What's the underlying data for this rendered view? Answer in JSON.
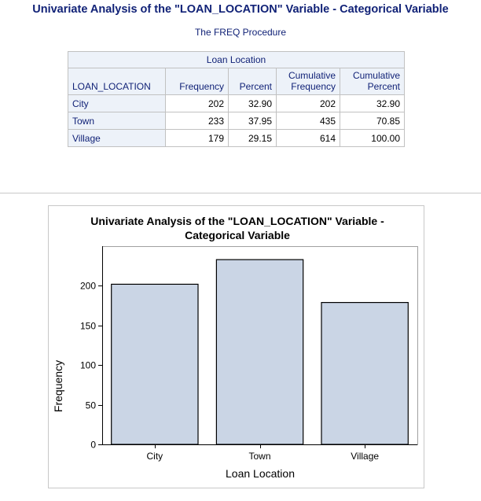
{
  "page": {
    "title": "Univariate Analysis of the \"LOAN_LOCATION\" Variable - Categorical Variable",
    "procedure": "The FREQ Procedure"
  },
  "freq_table": {
    "caption": "Loan Location",
    "columns": {
      "variable": "LOAN_LOCATION",
      "frequency": "Frequency",
      "percent": "Percent",
      "cum_freq_line1": "Cumulative",
      "cum_freq_line2": "Frequency",
      "cum_pct_line1": "Cumulative",
      "cum_pct_line2": "Percent"
    },
    "rows": [
      {
        "label": "City",
        "frequency": "202",
        "percent": "32.90",
        "cum_freq": "202",
        "cum_pct": "32.90"
      },
      {
        "label": "Town",
        "frequency": "233",
        "percent": "37.95",
        "cum_freq": "435",
        "cum_pct": "70.85"
      },
      {
        "label": "Village",
        "frequency": "179",
        "percent": "29.15",
        "cum_freq": "614",
        "cum_pct": "100.00"
      }
    ]
  },
  "chart_data": {
    "type": "bar",
    "title_line1": "Univariate Analysis of the \"LOAN_LOCATION\" Variable -",
    "title_line2": "Categorical Variable",
    "xlabel": "Loan Location",
    "ylabel": "Frequency",
    "categories": [
      "City",
      "Town",
      "Village"
    ],
    "values": [
      202,
      233,
      179
    ],
    "ylim": [
      0,
      250
    ],
    "yticks": [
      0,
      50,
      100,
      150,
      200
    ],
    "bar_color": "#cad5e5",
    "bar_stroke": "#000000",
    "grid": false
  },
  "colors": {
    "title": "#112277",
    "header_bg": "#edf2f9",
    "border": "#c1c1c1"
  }
}
